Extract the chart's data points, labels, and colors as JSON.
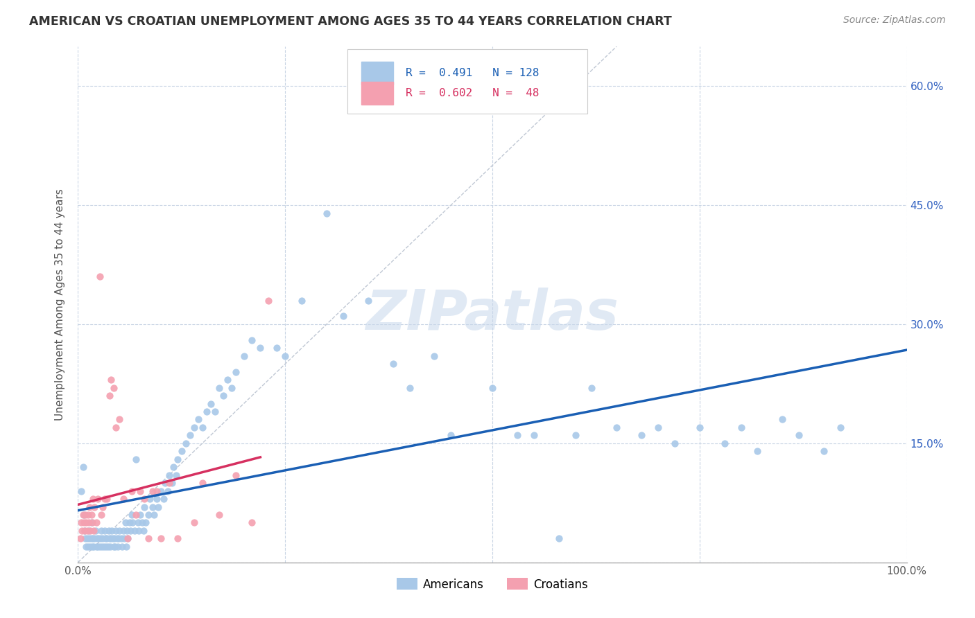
{
  "title": "AMERICAN VS CROATIAN UNEMPLOYMENT AMONG AGES 35 TO 44 YEARS CORRELATION CHART",
  "source": "Source: ZipAtlas.com",
  "ylabel": "Unemployment Among Ages 35 to 44 years",
  "xlim": [
    0.0,
    1.0
  ],
  "ylim": [
    0.0,
    0.65
  ],
  "xtick_labels": [
    "0.0%",
    "",
    "",
    "",
    "100.0%"
  ],
  "ytick_labels": [
    "",
    "15.0%",
    "30.0%",
    "45.0%",
    "60.0%"
  ],
  "yticks": [
    0.0,
    0.15,
    0.3,
    0.45,
    0.6
  ],
  "american_color": "#a8c8e8",
  "croatian_color": "#f4a0b0",
  "american_line_color": "#1a5fb4",
  "croatian_line_color": "#d63060",
  "grid_color": "#c8d4e4",
  "background_color": "#ffffff",
  "watermark": "ZIPatlas",
  "americans_x": [
    0.004,
    0.006,
    0.007,
    0.008,
    0.009,
    0.01,
    0.011,
    0.012,
    0.013,
    0.014,
    0.015,
    0.016,
    0.016,
    0.017,
    0.018,
    0.019,
    0.02,
    0.021,
    0.022,
    0.023,
    0.024,
    0.025,
    0.026,
    0.027,
    0.028,
    0.029,
    0.03,
    0.031,
    0.032,
    0.033,
    0.034,
    0.035,
    0.036,
    0.037,
    0.038,
    0.039,
    0.04,
    0.041,
    0.042,
    0.043,
    0.044,
    0.045,
    0.046,
    0.047,
    0.048,
    0.049,
    0.05,
    0.052,
    0.053,
    0.055,
    0.056,
    0.057,
    0.058,
    0.059,
    0.06,
    0.062,
    0.063,
    0.065,
    0.066,
    0.068,
    0.07,
    0.072,
    0.073,
    0.075,
    0.077,
    0.079,
    0.08,
    0.082,
    0.085,
    0.087,
    0.09,
    0.092,
    0.095,
    0.097,
    0.1,
    0.103,
    0.105,
    0.108,
    0.11,
    0.113,
    0.115,
    0.118,
    0.12,
    0.125,
    0.13,
    0.135,
    0.14,
    0.145,
    0.15,
    0.155,
    0.16,
    0.165,
    0.17,
    0.175,
    0.18,
    0.185,
    0.19,
    0.2,
    0.21,
    0.22,
    0.24,
    0.25,
    0.27,
    0.3,
    0.32,
    0.35,
    0.38,
    0.4,
    0.43,
    0.45,
    0.5,
    0.53,
    0.55,
    0.58,
    0.6,
    0.62,
    0.65,
    0.68,
    0.7,
    0.72,
    0.75,
    0.78,
    0.8,
    0.82,
    0.85,
    0.87,
    0.9,
    0.92
  ],
  "americans_y": [
    0.09,
    0.12,
    0.06,
    0.04,
    0.03,
    0.02,
    0.03,
    0.02,
    0.04,
    0.03,
    0.02,
    0.03,
    0.05,
    0.02,
    0.03,
    0.02,
    0.03,
    0.04,
    0.02,
    0.03,
    0.02,
    0.03,
    0.02,
    0.03,
    0.04,
    0.02,
    0.03,
    0.02,
    0.04,
    0.03,
    0.02,
    0.03,
    0.02,
    0.04,
    0.03,
    0.02,
    0.03,
    0.04,
    0.03,
    0.02,
    0.03,
    0.02,
    0.04,
    0.03,
    0.02,
    0.03,
    0.04,
    0.03,
    0.02,
    0.04,
    0.03,
    0.05,
    0.02,
    0.04,
    0.03,
    0.05,
    0.04,
    0.06,
    0.05,
    0.04,
    0.13,
    0.05,
    0.04,
    0.06,
    0.05,
    0.04,
    0.07,
    0.05,
    0.06,
    0.08,
    0.07,
    0.06,
    0.08,
    0.07,
    0.09,
    0.08,
    0.1,
    0.09,
    0.11,
    0.1,
    0.12,
    0.11,
    0.13,
    0.14,
    0.15,
    0.16,
    0.17,
    0.18,
    0.17,
    0.19,
    0.2,
    0.19,
    0.22,
    0.21,
    0.23,
    0.22,
    0.24,
    0.26,
    0.28,
    0.27,
    0.27,
    0.26,
    0.33,
    0.44,
    0.31,
    0.33,
    0.25,
    0.22,
    0.26,
    0.16,
    0.22,
    0.16,
    0.16,
    0.03,
    0.16,
    0.22,
    0.17,
    0.16,
    0.17,
    0.15,
    0.17,
    0.15,
    0.17,
    0.14,
    0.18,
    0.16,
    0.14,
    0.17
  ],
  "croatians_x": [
    0.003,
    0.004,
    0.005,
    0.006,
    0.007,
    0.008,
    0.009,
    0.01,
    0.011,
    0.012,
    0.013,
    0.014,
    0.015,
    0.016,
    0.017,
    0.018,
    0.019,
    0.02,
    0.022,
    0.024,
    0.026,
    0.028,
    0.03,
    0.032,
    0.035,
    0.038,
    0.04,
    0.043,
    0.046,
    0.05,
    0.055,
    0.06,
    0.065,
    0.07,
    0.075,
    0.08,
    0.085,
    0.09,
    0.095,
    0.1,
    0.11,
    0.12,
    0.14,
    0.15,
    0.17,
    0.19,
    0.21,
    0.23
  ],
  "croatians_y": [
    0.03,
    0.05,
    0.04,
    0.06,
    0.05,
    0.04,
    0.06,
    0.05,
    0.04,
    0.06,
    0.05,
    0.07,
    0.04,
    0.06,
    0.05,
    0.08,
    0.04,
    0.07,
    0.05,
    0.08,
    0.36,
    0.06,
    0.07,
    0.08,
    0.08,
    0.21,
    0.23,
    0.22,
    0.17,
    0.18,
    0.08,
    0.03,
    0.09,
    0.06,
    0.09,
    0.08,
    0.03,
    0.09,
    0.09,
    0.03,
    0.1,
    0.03,
    0.05,
    0.1,
    0.06,
    0.11,
    0.05,
    0.33
  ]
}
